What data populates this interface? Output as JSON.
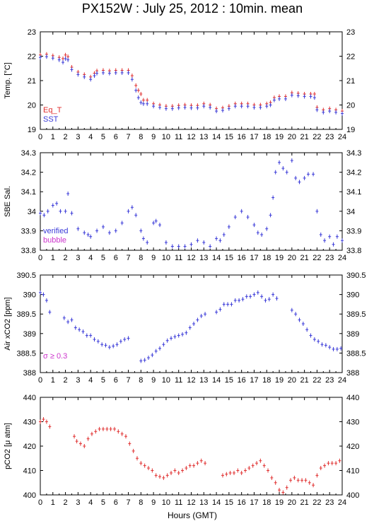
{
  "title": "PX152W : July 25, 2012 : 10min. mean",
  "xlabel": "Hours (GMT)",
  "colors": {
    "red": "#e03030",
    "blue": "#3a3ad8",
    "magenta": "#cc33cc",
    "axis": "#000000"
  },
  "chart_data": [
    {
      "type": "scatter",
      "ylabel": "Temp. [°C]",
      "xlim": [
        0,
        24
      ],
      "ylim": [
        19,
        23
      ],
      "x_ticks": [
        0,
        1,
        2,
        3,
        4,
        5,
        6,
        7,
        8,
        9,
        10,
        11,
        12,
        13,
        14,
        15,
        16,
        17,
        18,
        19,
        20,
        21,
        22,
        23,
        24
      ],
      "y_ticks": [
        19,
        20,
        21,
        22,
        23
      ],
      "legend": [
        "Eq_T",
        "SST"
      ],
      "legend_position": "bottom-left",
      "series": [
        {
          "name": "Eq_T",
          "color": "red",
          "x": [
            0,
            0.5,
            1,
            1.5,
            1.8,
            2,
            2.2,
            2.5,
            3,
            3.5,
            4,
            4.3,
            4.5,
            5,
            5.5,
            6,
            6.5,
            7,
            7.3,
            7.6,
            7.8,
            8,
            8.2,
            8.5,
            9,
            9.5,
            10,
            10.5,
            11,
            11.5,
            12,
            12.5,
            13,
            13.5,
            14,
            14.5,
            15,
            15.5,
            16,
            16.5,
            17,
            17.5,
            18,
            18.3,
            18.6,
            19,
            19.5,
            20,
            20.5,
            21,
            21.5,
            21.8,
            22,
            22.5,
            23,
            23.5,
            24
          ],
          "y": [
            22.05,
            22.08,
            22.02,
            21.95,
            21.9,
            22.05,
            21.98,
            21.55,
            21.35,
            21.25,
            21.15,
            21.3,
            21.4,
            21.42,
            21.4,
            21.42,
            21.42,
            21.42,
            21.2,
            20.8,
            20.6,
            20.45,
            20.2,
            20.2,
            20.05,
            20.0,
            19.95,
            19.95,
            19.98,
            20.0,
            19.98,
            19.98,
            20.05,
            20.0,
            19.85,
            19.88,
            19.95,
            20.05,
            20.05,
            20.05,
            20.0,
            20.0,
            20.05,
            20.1,
            20.3,
            20.35,
            20.35,
            20.5,
            20.48,
            20.45,
            20.45,
            20.45,
            19.9,
            19.8,
            19.85,
            19.8,
            19.75
          ]
        },
        {
          "name": "SST",
          "color": "blue",
          "x": [
            0,
            0.5,
            1,
            1.5,
            1.8,
            2,
            2.2,
            2.5,
            3,
            3.5,
            4,
            4.3,
            4.5,
            5,
            5.5,
            6,
            6.5,
            7,
            7.3,
            7.6,
            7.8,
            8,
            8.2,
            8.5,
            9,
            9.5,
            10,
            10.5,
            11,
            11.5,
            12,
            12.5,
            13,
            13.5,
            14,
            14.5,
            15,
            15.5,
            16,
            16.5,
            17,
            17.5,
            18,
            18.3,
            18.6,
            19,
            19.5,
            20,
            20.5,
            21,
            21.5,
            21.8,
            22,
            22.5,
            23,
            23.5,
            24
          ],
          "y": [
            21.95,
            21.98,
            21.92,
            21.85,
            21.75,
            21.9,
            21.85,
            21.45,
            21.25,
            21.15,
            21.05,
            21.2,
            21.3,
            21.32,
            21.3,
            21.32,
            21.32,
            21.32,
            21.05,
            20.6,
            20.3,
            20.1,
            20.05,
            20.05,
            19.95,
            19.9,
            19.85,
            19.85,
            19.88,
            19.9,
            19.88,
            19.88,
            19.95,
            19.9,
            19.75,
            19.78,
            19.85,
            19.95,
            19.95,
            19.95,
            19.9,
            19.9,
            19.95,
            20.0,
            20.2,
            20.25,
            20.25,
            20.4,
            20.38,
            20.35,
            20.35,
            20.3,
            19.8,
            19.7,
            19.75,
            19.7,
            19.65
          ]
        }
      ]
    },
    {
      "type": "scatter",
      "ylabel": "SBE Sal.",
      "xlim": [
        0,
        24
      ],
      "ylim": [
        33.8,
        34.3
      ],
      "x_ticks": [
        0,
        1,
        2,
        3,
        4,
        5,
        6,
        7,
        8,
        9,
        10,
        11,
        12,
        13,
        14,
        15,
        16,
        17,
        18,
        19,
        20,
        21,
        22,
        23,
        24
      ],
      "y_ticks": [
        33.8,
        33.9,
        34.0,
        34.1,
        34.2,
        34.3
      ],
      "y_tick_labels": [
        "33.8",
        "33.9",
        "34",
        "34.1",
        "34.2",
        "34.3"
      ],
      "legend": [
        "verified",
        "bubble"
      ],
      "legend_position": "bottom-left",
      "series": [
        {
          "name": "verified",
          "color": "blue",
          "x": [
            0,
            0.3,
            0.6,
            1,
            1.3,
            1.6,
            2,
            2.2,
            2.5,
            3,
            3.5,
            3.8,
            4,
            4.5,
            5,
            5.5,
            6,
            6.5,
            7,
            7.3,
            7.6,
            8,
            8.2,
            8.5,
            9,
            9.2,
            9.5,
            10,
            10.5,
            11,
            11.5,
            12,
            12.5,
            13,
            13.5,
            14,
            14.3,
            14.6,
            15,
            15.5,
            16,
            16.5,
            17,
            17.3,
            17.6,
            18,
            18.3,
            18.5,
            18.7,
            19,
            19.3,
            19.6,
            20,
            20.3,
            20.6,
            21,
            21.3,
            21.7,
            22,
            22.3,
            22.6,
            23,
            23.3,
            23.6,
            24
          ],
          "y": [
            33.99,
            33.98,
            34.0,
            34.03,
            34.04,
            34.0,
            34.0,
            34.09,
            33.99,
            33.91,
            33.89,
            33.88,
            33.87,
            33.9,
            33.92,
            33.89,
            33.9,
            33.94,
            34.0,
            34.02,
            33.98,
            33.9,
            33.86,
            33.84,
            33.94,
            33.95,
            33.93,
            33.84,
            33.82,
            33.82,
            33.82,
            33.83,
            33.85,
            33.84,
            33.82,
            33.86,
            33.85,
            33.88,
            33.92,
            33.97,
            34.0,
            33.97,
            33.93,
            33.89,
            33.88,
            33.91,
            33.98,
            34.07,
            34.2,
            34.25,
            34.22,
            34.2,
            34.26,
            34.17,
            34.15,
            34.17,
            34.19,
            34.19,
            34.0,
            33.88,
            33.85,
            33.87,
            33.83,
            33.87,
            33.85
          ]
        }
      ]
    },
    {
      "type": "scatter",
      "ylabel": "Air xCO2 [ppm]",
      "xlim": [
        0,
        24
      ],
      "ylim": [
        388,
        390.5
      ],
      "x_ticks": [
        0,
        1,
        2,
        3,
        4,
        5,
        6,
        7,
        8,
        9,
        10,
        11,
        12,
        13,
        14,
        15,
        16,
        17,
        18,
        19,
        20,
        21,
        22,
        23,
        24
      ],
      "y_ticks": [
        388,
        388.5,
        389,
        389.5,
        390,
        390.5
      ],
      "y_tick_labels": [
        "388",
        "388.5",
        "389",
        "389.5",
        "390",
        "390.5"
      ],
      "annotation": "σ ≥ 0.3",
      "series": [
        {
          "name": "",
          "color": "blue",
          "x": [
            0,
            0.25,
            0.5,
            0.75,
            1.9,
            2.2,
            2.5,
            2.8,
            3.1,
            3.4,
            3.7,
            4.0,
            4.3,
            4.6,
            4.9,
            5.2,
            5.5,
            5.8,
            6.1,
            6.4,
            6.7,
            7.0,
            8.0,
            8.3,
            8.6,
            8.9,
            9.2,
            9.5,
            9.8,
            10.1,
            10.4,
            10.7,
            11.0,
            11.3,
            11.6,
            11.9,
            12.2,
            12.5,
            12.8,
            13.1,
            14.0,
            14.3,
            14.6,
            14.9,
            15.2,
            15.5,
            15.8,
            16.1,
            16.4,
            16.7,
            17.0,
            17.3,
            17.6,
            17.9,
            18.2,
            18.5,
            18.8,
            20.0,
            20.3,
            20.6,
            20.9,
            21.2,
            21.5,
            21.8,
            22.1,
            22.4,
            22.7,
            23.0,
            23.3,
            23.6,
            23.9
          ],
          "y": [
            390.05,
            390.0,
            389.85,
            389.55,
            389.4,
            389.3,
            389.35,
            389.15,
            389.1,
            389.05,
            388.95,
            388.95,
            388.85,
            388.8,
            388.72,
            388.7,
            388.65,
            388.68,
            388.72,
            388.8,
            388.85,
            388.88,
            388.3,
            388.32,
            388.38,
            388.45,
            388.55,
            388.62,
            388.72,
            388.82,
            388.88,
            388.92,
            388.95,
            388.98,
            389.02,
            389.15,
            389.25,
            389.35,
            389.45,
            389.5,
            389.55,
            389.62,
            389.75,
            389.75,
            389.75,
            389.85,
            389.85,
            389.88,
            389.95,
            389.95,
            390.0,
            390.05,
            389.95,
            389.85,
            389.88,
            390.0,
            389.9,
            389.6,
            389.5,
            389.35,
            389.25,
            389.1,
            388.95,
            388.85,
            388.8,
            388.72,
            388.7,
            388.65,
            388.6,
            388.6,
            388.62
          ]
        }
      ]
    },
    {
      "type": "scatter",
      "ylabel": "pCO2 [μ atm]",
      "xlim": [
        0,
        24
      ],
      "ylim": [
        400,
        440
      ],
      "x_ticks": [
        0,
        1,
        2,
        3,
        4,
        5,
        6,
        7,
        8,
        9,
        10,
        11,
        12,
        13,
        14,
        15,
        16,
        17,
        18,
        19,
        20,
        21,
        22,
        23,
        24
      ],
      "y_ticks": [
        400,
        410,
        420,
        430,
        440
      ],
      "series": [
        {
          "name": "",
          "color": "red",
          "x": [
            0,
            0.25,
            0.5,
            0.75,
            2.7,
            2.9,
            3.2,
            3.5,
            3.8,
            4.1,
            4.4,
            4.7,
            5.0,
            5.3,
            5.6,
            5.9,
            6.2,
            6.5,
            6.8,
            7.1,
            7.4,
            7.7,
            8.0,
            8.3,
            8.6,
            8.9,
            9.2,
            9.5,
            9.8,
            10.1,
            10.4,
            10.7,
            11.0,
            11.3,
            11.6,
            11.9,
            12.2,
            12.5,
            12.8,
            13.1,
            14.5,
            14.8,
            15.1,
            15.4,
            15.7,
            16.0,
            16.3,
            16.6,
            16.9,
            17.2,
            17.5,
            17.8,
            18.1,
            18.4,
            18.7,
            19.0,
            19.3,
            19.6,
            19.9,
            20.2,
            20.5,
            20.8,
            21.1,
            21.4,
            21.7,
            22.0,
            22.3,
            22.6,
            22.9,
            23.2,
            23.5,
            23.8
          ],
          "y": [
            430,
            431,
            430,
            428,
            424,
            422,
            421,
            420,
            423,
            425,
            426,
            427,
            427,
            427,
            427,
            427,
            426,
            425,
            424,
            421,
            418,
            415,
            413,
            412,
            411,
            410,
            408,
            407.5,
            407,
            408,
            409,
            410,
            409,
            410,
            411,
            412,
            412,
            413,
            414,
            413,
            408,
            408.5,
            409,
            409,
            410,
            409,
            410,
            411,
            412,
            413,
            414,
            412,
            410,
            407,
            405,
            402,
            401,
            403,
            406,
            407,
            406,
            406,
            406,
            405,
            404,
            408,
            411,
            412,
            413,
            413,
            413,
            414
          ]
        }
      ]
    }
  ]
}
